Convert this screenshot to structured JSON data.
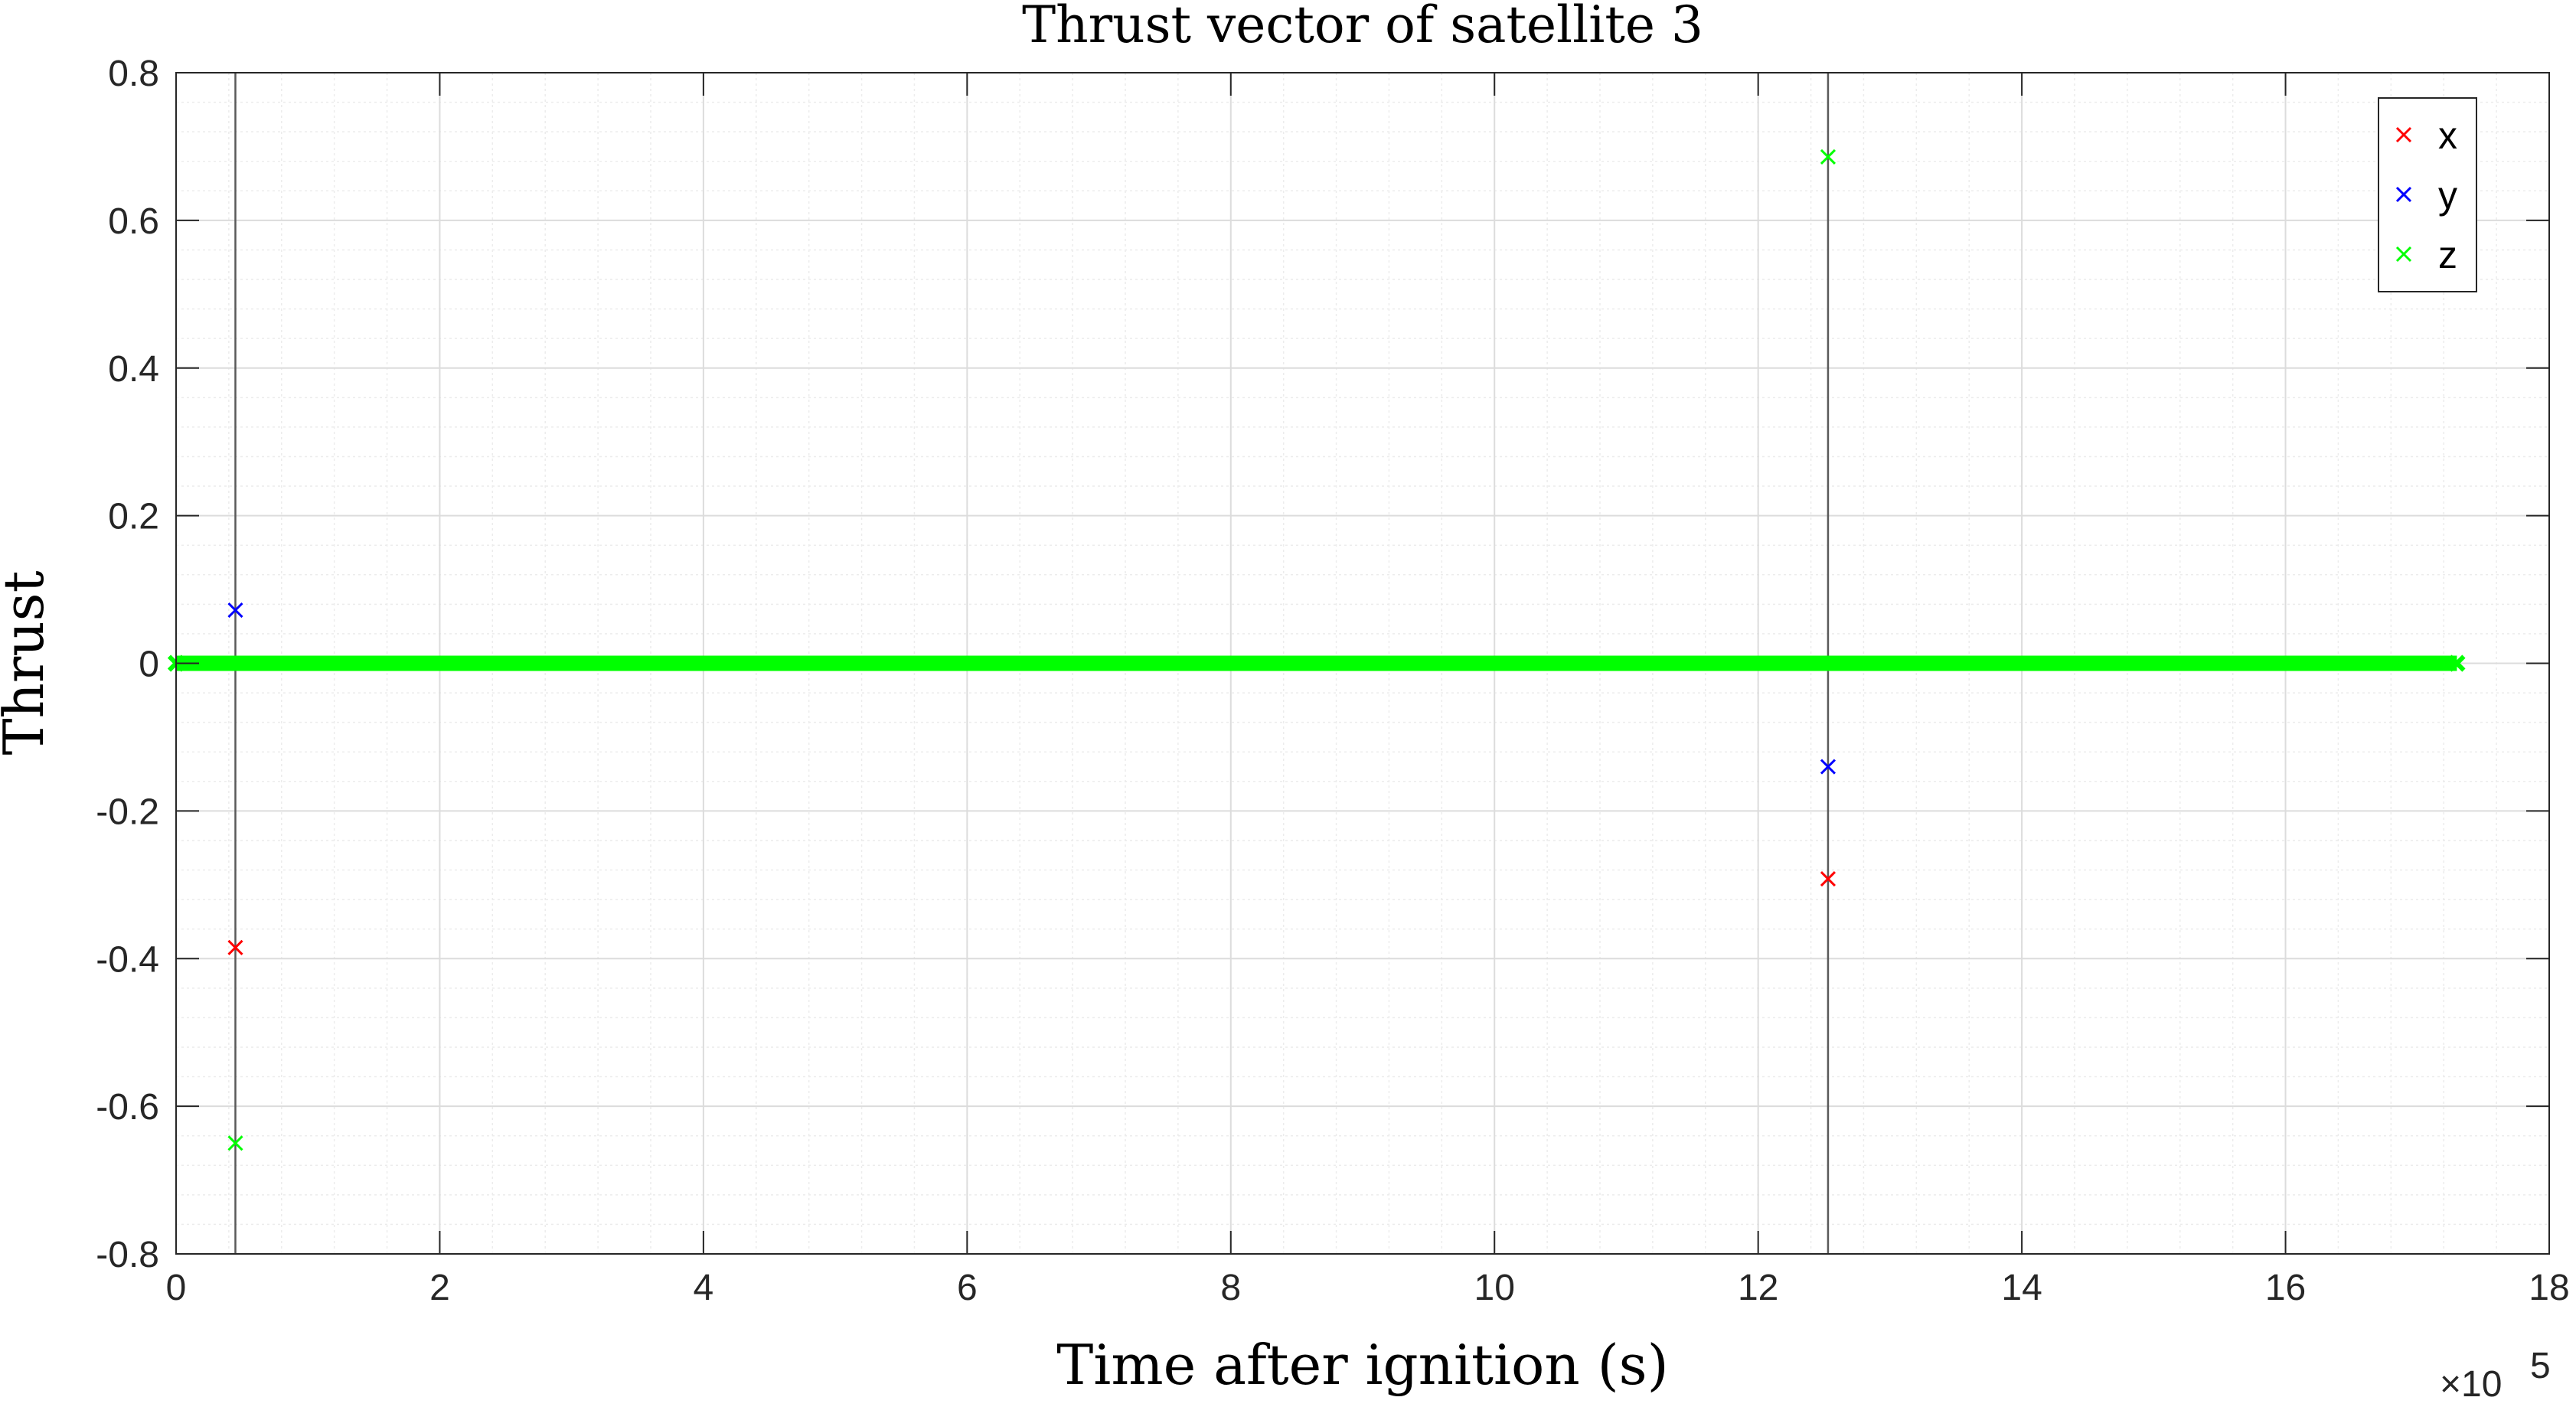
{
  "chart_data": {
    "type": "scatter",
    "title": "Thrust vector of satellite 3",
    "xlabel": "Time after ignition (s)",
    "ylabel": "Thrust",
    "x_exponent_label": "×10",
    "x_exponent_power": "5",
    "xlim": [
      0,
      18
    ],
    "ylim": [
      -0.8,
      0.8
    ],
    "x_ticks": [
      0,
      2,
      4,
      6,
      8,
      10,
      12,
      14,
      16,
      18
    ],
    "x_tick_labels": [
      "0",
      "2",
      "4",
      "6",
      "8",
      "10",
      "12",
      "14",
      "16",
      "18"
    ],
    "y_ticks": [
      -0.8,
      -0.6,
      -0.4,
      -0.2,
      0,
      0.2,
      0.4,
      0.6,
      0.8
    ],
    "y_tick_labels": [
      "-0.8",
      "-0.6",
      "-0.4",
      "-0.2",
      "0",
      "0.2",
      "0.4",
      "0.6",
      "0.8"
    ],
    "x_minor_step": 0.4,
    "y_minor_step": 0.04,
    "grid": true,
    "minor_grid": true,
    "marker": "x",
    "legend_position": "top-right",
    "vertical_lines": [
      0.45,
      12.53
    ],
    "zero_line_range": [
      0,
      17.3
    ],
    "series": [
      {
        "name": "x",
        "color": "#ff0000",
        "points": [
          [
            0.45,
            -0.385
          ],
          [
            12.53,
            -0.292
          ]
        ]
      },
      {
        "name": "y",
        "color": "#0000ff",
        "points": [
          [
            0.45,
            0.072
          ],
          [
            12.53,
            -0.14
          ]
        ]
      },
      {
        "name": "z",
        "color": "#00ff00",
        "points": [
          [
            0.45,
            -0.65
          ],
          [
            12.53,
            0.686
          ]
        ]
      }
    ]
  }
}
